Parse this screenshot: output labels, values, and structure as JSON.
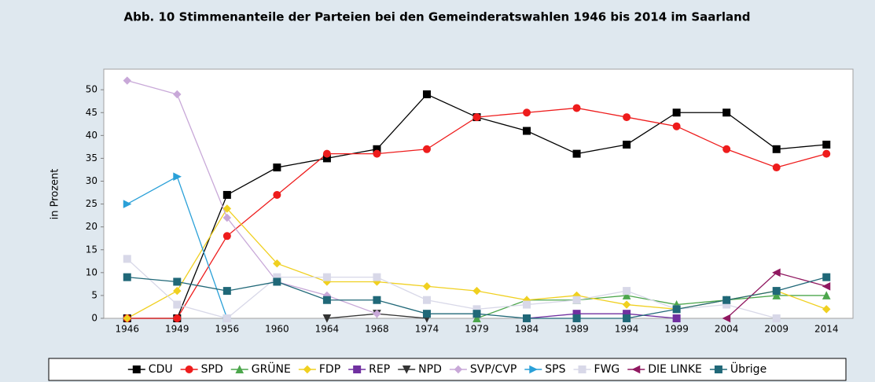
{
  "chart_data": {
    "type": "line",
    "title": "Abb. 10 Stimmenanteile der Parteien bei den Gemeinderatswahlen 1946 bis 2014 im Saarland",
    "y_label": "in Prozent",
    "categories": [
      "1946",
      "1949",
      "1956",
      "1960",
      "1964",
      "1968",
      "1974",
      "1979",
      "1984",
      "1989",
      "1994",
      "1999",
      "2004",
      "2009",
      "2014"
    ],
    "ylim": [
      0,
      54.5
    ],
    "yticks": [
      0,
      5,
      10,
      15,
      20,
      25,
      30,
      35,
      40,
      45,
      50
    ],
    "grid": false,
    "legend": "bottom",
    "series": [
      {
        "name": "CDU",
        "color": "#000000",
        "marker": "square",
        "values": [
          0,
          0,
          27,
          33,
          35,
          37,
          49,
          44,
          41,
          36,
          38,
          45,
          45,
          37,
          38
        ]
      },
      {
        "name": "SPD",
        "color": "#ee1c1c",
        "marker": "circle",
        "values": [
          0,
          0,
          18,
          27,
          36,
          36,
          37,
          44,
          45,
          46,
          44,
          42,
          37,
          33,
          36
        ]
      },
      {
        "name": "GRÜNE",
        "color": "#4ca64c",
        "marker": "triangle-up",
        "values": [
          null,
          null,
          null,
          null,
          null,
          null,
          null,
          0,
          4,
          4,
          5,
          3,
          4,
          5,
          5
        ]
      },
      {
        "name": "FDP",
        "color": "#f0d020",
        "marker": "diamond",
        "values": [
          0,
          6,
          24,
          12,
          8,
          8,
          7,
          6,
          4,
          5,
          3,
          2,
          4,
          6,
          2
        ]
      },
      {
        "name": "REP",
        "color": "#7030a0",
        "marker": "square",
        "values": [
          null,
          null,
          null,
          null,
          null,
          null,
          null,
          null,
          0,
          1,
          1,
          0,
          null,
          null,
          null
        ]
      },
      {
        "name": "NPD",
        "color": "#333333",
        "marker": "triangle-down",
        "values": [
          null,
          null,
          null,
          null,
          0,
          1,
          0,
          null,
          null,
          null,
          null,
          null,
          null,
          null,
          null
        ]
      },
      {
        "name": "SVP/CVP",
        "color": "#c8a8d8",
        "marker": "diamond",
        "values": [
          52,
          49,
          22,
          8,
          5,
          1,
          null,
          null,
          null,
          null,
          null,
          null,
          null,
          null,
          null
        ]
      },
      {
        "name": "SPS",
        "color": "#2aa0d8",
        "marker": "triangle-right",
        "values": [
          25,
          31,
          0,
          null,
          null,
          null,
          null,
          null,
          null,
          null,
          null,
          null,
          null,
          null,
          null
        ]
      },
      {
        "name": "FWG",
        "color": "#d8d8e8",
        "marker": "square",
        "values": [
          13,
          3,
          0,
          9,
          9,
          9,
          4,
          2,
          3,
          4,
          6,
          2,
          3,
          0,
          null
        ]
      },
      {
        "name": "DIE LINKE",
        "color": "#901860",
        "marker": "triangle-left",
        "values": [
          null,
          null,
          null,
          null,
          null,
          null,
          null,
          null,
          null,
          null,
          null,
          null,
          0,
          10,
          7
        ]
      },
      {
        "name": "Übrige",
        "color": "#206878",
        "marker": "square",
        "values": [
          9,
          8,
          6,
          8,
          4,
          4,
          1,
          1,
          0,
          0,
          0,
          2,
          4,
          6,
          9
        ]
      }
    ]
  }
}
